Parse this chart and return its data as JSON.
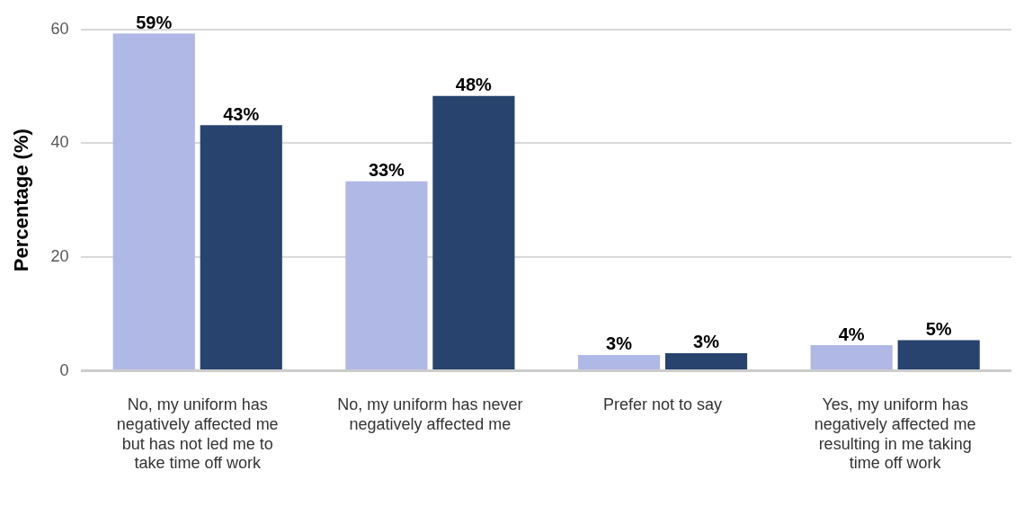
{
  "chart_data": {
    "type": "bar",
    "ylabel": "Percentage (%)",
    "categories": [
      "No, my uniform has negatively affected me but has not led me to take time off work",
      "No, my uniform has never negatively affected me",
      "Prefer not to say",
      "Yes, my uniform has negatively affected me resulting in me taking time off work"
    ],
    "series": [
      {
        "color": "#b0b8e6",
        "values": [
          59.3,
          33.3,
          2.8,
          4.5
        ],
        "value_labels": [
          "59%",
          "33%",
          "3%",
          "4%"
        ]
      },
      {
        "color": "#27436e",
        "values": [
          43.2,
          48.3,
          3.1,
          5.4
        ],
        "value_labels": [
          "43%",
          "48%",
          "3%",
          "5%"
        ]
      }
    ],
    "ylim": [
      0,
      60
    ],
    "yticks": [
      0,
      20,
      40,
      60
    ],
    "grid": "y",
    "legend": false
  }
}
